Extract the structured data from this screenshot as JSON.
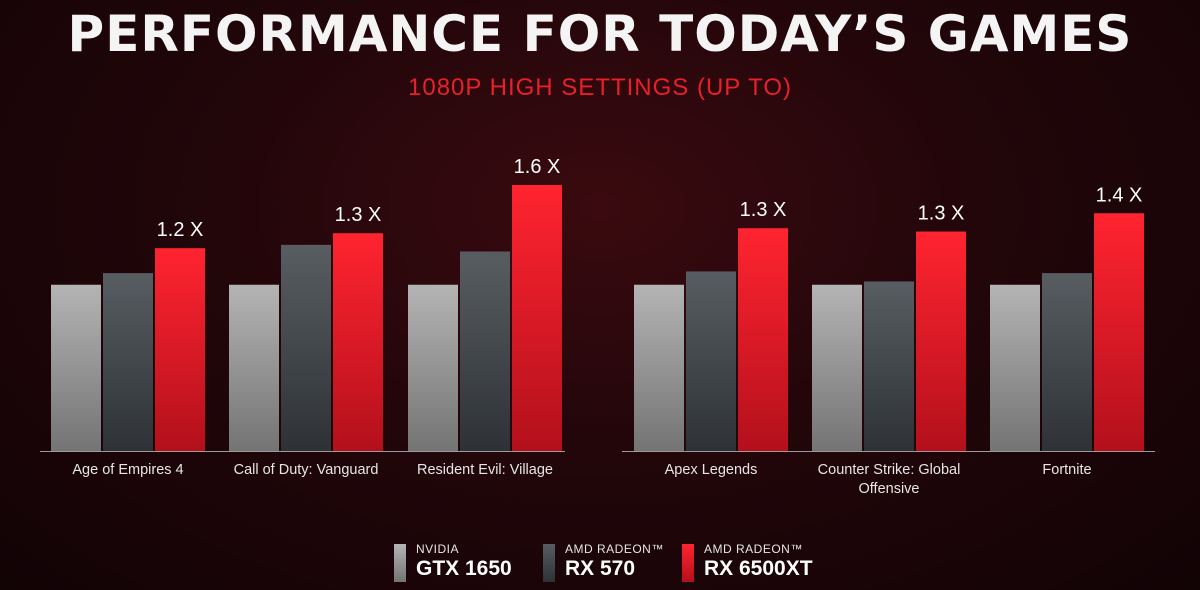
{
  "title": "PERFORMANCE FOR TODAY’S GAMES",
  "subtitle": "1080P HIGH SETTINGS (UP TO)",
  "colors": {
    "nvidia_gtx1650": "#9a9a9a",
    "amd_rx570": "#4a4f54",
    "amd_rx6500xt": "#e81d2a"
  },
  "legend": [
    {
      "maker": "NVIDIA",
      "model": "GTX 1650"
    },
    {
      "maker": "AMD RADEON™",
      "model": "RX 570"
    },
    {
      "maker": "AMD RADEON™",
      "model": "RX 6500XT"
    }
  ],
  "chart_data": [
    {
      "type": "bar",
      "categories": [
        "Age of Empires 4",
        "Call of Duty: Vanguard",
        "Resident Evil: Village"
      ],
      "series": [
        {
          "name": "NVIDIA GTX 1650",
          "values": [
            1.0,
            1.0,
            1.0
          ]
        },
        {
          "name": "AMD RADEON™ RX 570",
          "values": [
            1.07,
            1.24,
            1.2
          ]
        },
        {
          "name": "AMD RADEON™ RX 6500XT",
          "values": [
            1.22,
            1.31,
            1.6
          ]
        }
      ],
      "data_labels": [
        "1.2 X",
        "1.3 X",
        "1.6 X"
      ],
      "ylim": [
        0,
        1.6
      ],
      "grid": false
    },
    {
      "type": "bar",
      "categories": [
        "Apex Legends",
        "Counter Strike: Global Offensive",
        "Fortnite"
      ],
      "series": [
        {
          "name": "NVIDIA GTX 1650",
          "values": [
            1.0,
            1.0,
            1.0
          ]
        },
        {
          "name": "AMD RADEON™ RX 570",
          "values": [
            1.08,
            1.02,
            1.07
          ]
        },
        {
          "name": "AMD RADEON™ RX 6500XT",
          "values": [
            1.34,
            1.32,
            1.43
          ]
        }
      ],
      "data_labels": [
        "1.3 X",
        "1.3 X",
        "1.4 X"
      ],
      "ylim": [
        0,
        1.6
      ],
      "grid": false
    }
  ]
}
